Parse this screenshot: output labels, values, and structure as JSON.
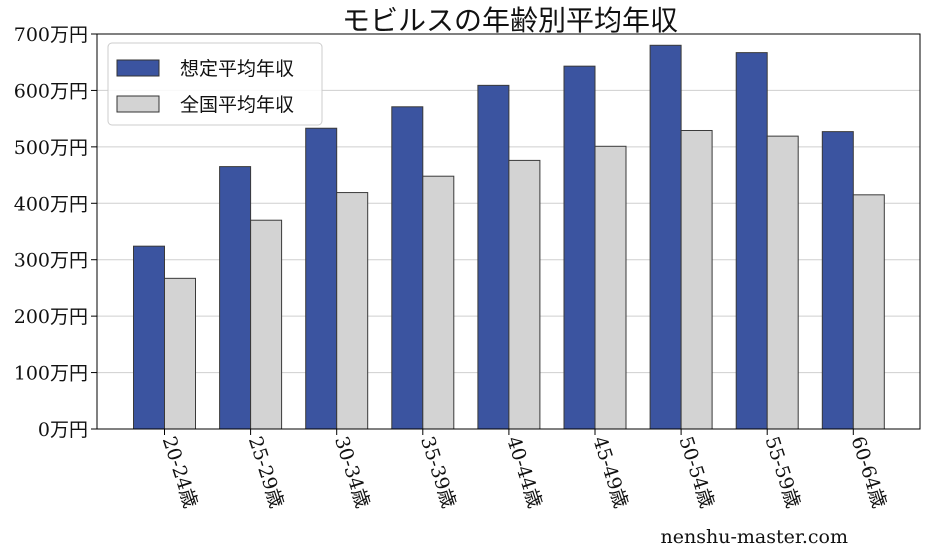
{
  "chart_data": {
    "type": "bar",
    "title": "モビルスの年齢別平均年収",
    "xlabel": "",
    "ylabel": "",
    "categories": [
      "20-24歳",
      "25-29歳",
      "30-34歳",
      "35-39歳",
      "40-44歳",
      "45-49歳",
      "50-54歳",
      "55-59歳",
      "60-64歳"
    ],
    "series": [
      {
        "name": "想定平均年収",
        "color": "#3b54a0",
        "values": [
          324,
          465,
          533,
          571,
          609,
          643,
          680,
          667,
          527
        ]
      },
      {
        "name": "全国平均年収",
        "color": "#d3d3d3",
        "values": [
          267,
          370,
          419,
          448,
          476,
          501,
          529,
          519,
          415
        ]
      }
    ],
    "ylim": [
      0,
      700
    ],
    "yticks": [
      0,
      100,
      200,
      300,
      400,
      500,
      600,
      700
    ],
    "ytick_labels": [
      "0万円",
      "100万円",
      "200万円",
      "300万円",
      "400万円",
      "500万円",
      "600万円",
      "700万円"
    ],
    "grid": true,
    "legend_position": "top-left"
  },
  "watermark": "nenshu-master.com"
}
